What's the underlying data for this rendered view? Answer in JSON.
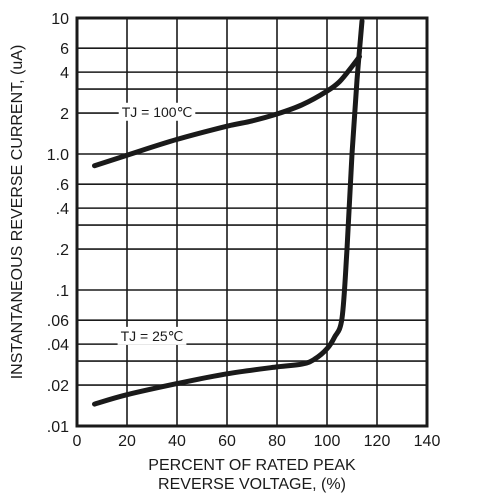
{
  "chart_data": {
    "type": "line",
    "xlabel_line1": "PERCENT OF RATED PEAK",
    "xlabel_line2": "REVERSE VOLTAGE, (%)",
    "ylabel": "INSTANTANEOUS REVERSE CURRENT, (uA)",
    "xlim": [
      0,
      140
    ],
    "ylim": [
      0.01,
      10
    ],
    "yscale": "log",
    "grid": true,
    "x_ticks": [
      {
        "value": 0,
        "label": "0"
      },
      {
        "value": 20,
        "label": "20"
      },
      {
        "value": 40,
        "label": "40"
      },
      {
        "value": 60,
        "label": "60"
      },
      {
        "value": 80,
        "label": "80"
      },
      {
        "value": 100,
        "label": "100"
      },
      {
        "value": 120,
        "label": "120"
      },
      {
        "value": 140,
        "label": "140"
      }
    ],
    "y_ticks": [
      {
        "value": 0.01,
        "label": ".01"
      },
      {
        "value": 0.02,
        "label": ".02"
      },
      {
        "value": 0.04,
        "label": ".04"
      },
      {
        "value": 0.06,
        "label": ".06"
      },
      {
        "value": 0.1,
        "label": ".1"
      },
      {
        "value": 0.2,
        "label": ".2"
      },
      {
        "value": 0.4,
        "label": ".4"
      },
      {
        "value": 0.6,
        "label": ".6"
      },
      {
        "value": 1.0,
        "label": "1.0"
      },
      {
        "value": 2,
        "label": "2"
      },
      {
        "value": 4,
        "label": "4"
      },
      {
        "value": 6,
        "label": "6"
      },
      {
        "value": 10,
        "label": "10"
      }
    ],
    "series": [
      {
        "name": "TJ = 100℃",
        "points": [
          [
            7,
            0.82
          ],
          [
            20,
            0.98
          ],
          [
            40,
            1.28
          ],
          [
            60,
            1.6
          ],
          [
            70,
            1.75
          ],
          [
            80,
            1.97
          ],
          [
            90,
            2.3
          ],
          [
            100,
            2.9
          ],
          [
            105,
            3.4
          ],
          [
            110,
            4.4
          ],
          [
            113,
            5.2
          ]
        ]
      },
      {
        "name": "TJ = 25℃",
        "points": [
          [
            7,
            0.0145
          ],
          [
            20,
            0.017
          ],
          [
            40,
            0.0205
          ],
          [
            60,
            0.0242
          ],
          [
            80,
            0.0272
          ],
          [
            90,
            0.0285
          ],
          [
            95,
            0.031
          ],
          [
            100,
            0.037
          ],
          [
            103,
            0.045
          ],
          [
            106,
            0.062
          ],
          [
            108,
            0.2
          ],
          [
            110,
            1.0
          ],
          [
            112,
            3.5
          ],
          [
            114,
            9.5
          ]
        ]
      }
    ],
    "annotations": [
      {
        "text": "TJ = 100℃",
        "x": 32,
        "y": 2.0
      },
      {
        "text": "TJ = 25℃",
        "x": 30,
        "y": 0.045
      }
    ]
  }
}
